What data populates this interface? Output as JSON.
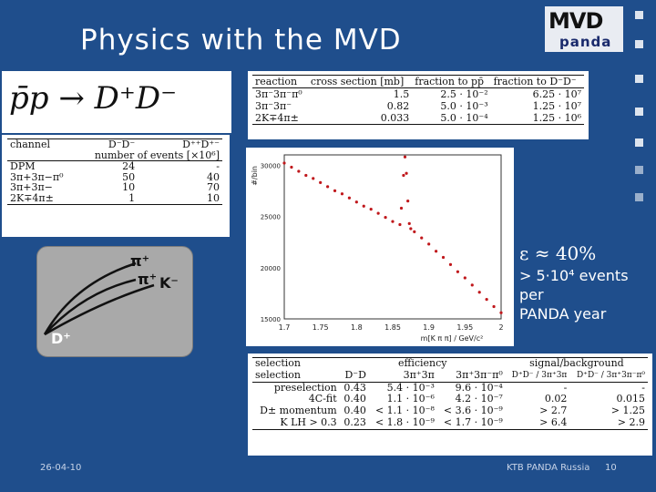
{
  "slide": {
    "title": "Physics with the MVD",
    "date": "26-04-10",
    "footer_center": "KTB PANDA Russia",
    "page_number": "10",
    "background_color": "#1f4e8c"
  },
  "logo": {
    "line1": "MVD",
    "line2": "panda"
  },
  "formula": "p̄p → D⁺D⁻",
  "channel_table": {
    "headers": [
      "channel",
      "D⁻D⁻",
      "D⁺⁺D⁺⁻"
    ],
    "subheader": "number of events [×10⁶]",
    "rows": [
      [
        "DPM",
        "24",
        "-"
      ],
      [
        "3π+3π−π⁰",
        "50",
        "40"
      ],
      [
        "3π+3π−",
        "10",
        "70"
      ],
      [
        "2K∓4π±",
        "1",
        "10"
      ]
    ]
  },
  "reaction_table": {
    "headers": [
      "reaction",
      "cross section [mb]",
      "fraction to pp̄",
      "fraction to D⁻D⁻"
    ],
    "rows": [
      [
        "3π⁻3π⁻π⁰",
        "1.5",
        "2.5 · 10⁻²",
        "6.25 · 10⁷"
      ],
      [
        "3π⁻3π⁻",
        "0.82",
        "5.0 · 10⁻³",
        "1.25 · 10⁷"
      ],
      [
        "2K∓4π±",
        "0.033",
        "5.0 · 10⁻⁴",
        "1.25 · 10⁶"
      ]
    ]
  },
  "efficiency_table": {
    "group_headers": [
      "selection",
      "efficiency",
      "signal/background"
    ],
    "headers": [
      "selection",
      "D⁻D",
      "3π⁺3π",
      "3π⁺3π⁻π⁰",
      "D⁺D⁻ / 3π⁺3π",
      "D⁺D⁻ / 3π⁺3π⁻π⁰"
    ],
    "rows": [
      [
        "preselection",
        "0.43",
        "5.4 · 10⁻³",
        "9.6 · 10⁻⁴",
        "-",
        "-"
      ],
      [
        "4C-fit",
        "0.40",
        "1.1 · 10⁻⁶",
        "4.2 · 10⁻⁷",
        "0.02",
        "0.015"
      ],
      [
        "D± momentum",
        "0.40",
        "< 1.1 · 10⁻⁸",
        "< 3.6 · 10⁻⁹",
        "> 2.7",
        "> 1.25"
      ],
      [
        "K LH > 0.3",
        "0.23",
        "< 1.8 · 10⁻⁹",
        "< 1.7 · 10⁻⁹",
        "> 6.4",
        "> 2.9"
      ]
    ]
  },
  "diagram": {
    "labels": [
      "π⁺",
      "π⁺",
      "K⁻",
      "D⁺"
    ]
  },
  "result": {
    "efficiency": "ε ≈ 40%",
    "events_line1": "> 5·10⁴ events",
    "events_line2": "per",
    "events_line3": "PANDA year"
  },
  "chart_data": {
    "type": "scatter",
    "ylabel": "#/bin",
    "xlabel": "m[K π π] / GeV/c²",
    "xlim": [
      1.7,
      2.0
    ],
    "ylim": [
      15000,
      31000
    ],
    "x_ticks": [
      "1.7",
      "1.75",
      "1.8",
      "1.85",
      "1.9",
      "1.95",
      "2"
    ],
    "y_ticks": [
      "30000",
      "25000",
      "20000",
      "15000"
    ],
    "y_tick_values": [
      30000,
      25000,
      20000,
      15000
    ],
    "x_tick_values": [
      1.7,
      1.75,
      1.8,
      1.85,
      1.9,
      1.95,
      2.0
    ],
    "series": [
      {
        "color": "#c0181c",
        "x": [
          1.7,
          1.71,
          1.72,
          1.73,
          1.74,
          1.75,
          1.76,
          1.77,
          1.78,
          1.79,
          1.8,
          1.81,
          1.82,
          1.83,
          1.84,
          1.85,
          1.86,
          1.862,
          1.865,
          1.867,
          1.869,
          1.871,
          1.873,
          1.875,
          1.88,
          1.89,
          1.9,
          1.91,
          1.92,
          1.93,
          1.94,
          1.95,
          1.96,
          1.97,
          1.98,
          1.99,
          2.0
        ],
        "y": [
          30200,
          29800,
          29400,
          29000,
          28700,
          28300,
          27900,
          27500,
          27200,
          26800,
          26400,
          26000,
          25700,
          25300,
          24900,
          24500,
          24200,
          25800,
          29000,
          30800,
          29200,
          26500,
          24300,
          23800,
          23500,
          22900,
          22300,
          21600,
          21000,
          20300,
          19600,
          19000,
          18300,
          17600,
          16900,
          16200,
          15600
        ]
      }
    ]
  }
}
